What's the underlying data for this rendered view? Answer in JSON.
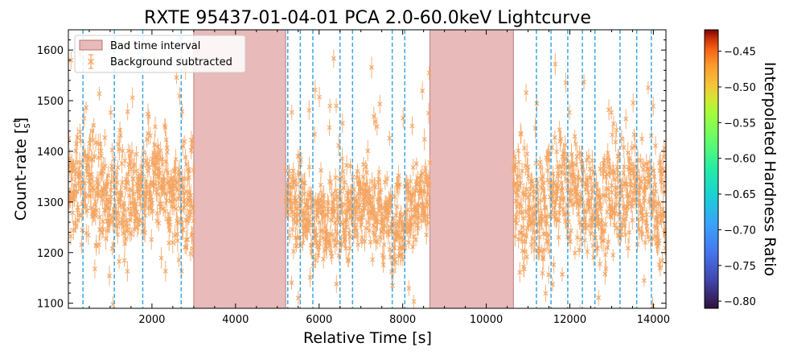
{
  "chart_data": {
    "type": "scatter",
    "title": "RXTE 95437-01-04-01 PCA 2.0-60.0keV Lightcurve",
    "xlabel": "Relative Time [s]",
    "ylabel_main": "Count-rate [",
    "ylabel_num": "ct",
    "ylabel_den": "s",
    "ylabel_end": "]",
    "xlim": [
      0,
      14300
    ],
    "ylim": [
      1090,
      1640
    ],
    "xticks": [
      2000,
      4000,
      6000,
      8000,
      10000,
      12000,
      14000
    ],
    "xtick_labels": [
      "2000",
      "4000",
      "6000",
      "8000",
      "10000",
      "12000",
      "14000"
    ],
    "yticks": [
      1100,
      1200,
      1300,
      1400,
      1500,
      1600
    ],
    "ytick_labels": [
      "1100",
      "1200",
      "1300",
      "1400",
      "1500",
      "1600"
    ],
    "bad_time_intervals": [
      [
        3000,
        5200
      ],
      [
        8650,
        10650
      ]
    ],
    "marker_lines_x": [
      350,
      1100,
      1780,
      2700,
      5250,
      5550,
      5850,
      6500,
      6800,
      7750,
      8050,
      11200,
      11550,
      11950,
      12300,
      12600,
      13200,
      13600,
      13950
    ],
    "segments": [
      {
        "x_start": 0,
        "x_end": 3000,
        "baseline": 1320,
        "spread": 70
      },
      {
        "x_start": 5200,
        "x_end": 8650,
        "baseline": 1280,
        "spread": 55
      },
      {
        "x_start": 10650,
        "x_end": 14300,
        "baseline": 1310,
        "spread": 70
      }
    ],
    "series": [
      {
        "name": "Background subtracted",
        "color": "#f4a460",
        "marker": "x"
      }
    ],
    "legend": {
      "position": "top-left",
      "entries": [
        {
          "label": "Bad time interval",
          "kind": "patch",
          "color": "#d98c8c"
        },
        {
          "label": "Background subtracted",
          "kind": "errorbar",
          "color": "#f4a460"
        }
      ]
    },
    "colorbar": {
      "label": "Interpolated Hardness Ratio",
      "range": [
        -0.81,
        -0.42
      ],
      "ticks": [
        -0.45,
        -0.5,
        -0.55,
        -0.6,
        -0.65,
        -0.7,
        -0.75,
        -0.8
      ],
      "tick_labels": [
        "−0.45",
        "−0.50",
        "−0.55",
        "−0.60",
        "−0.65",
        "−0.70",
        "−0.75",
        "−0.80"
      ]
    },
    "colors": {
      "data": "#f4a460",
      "bad_interval": "#d98c8c",
      "marker_line": "#3aa6e8"
    }
  }
}
